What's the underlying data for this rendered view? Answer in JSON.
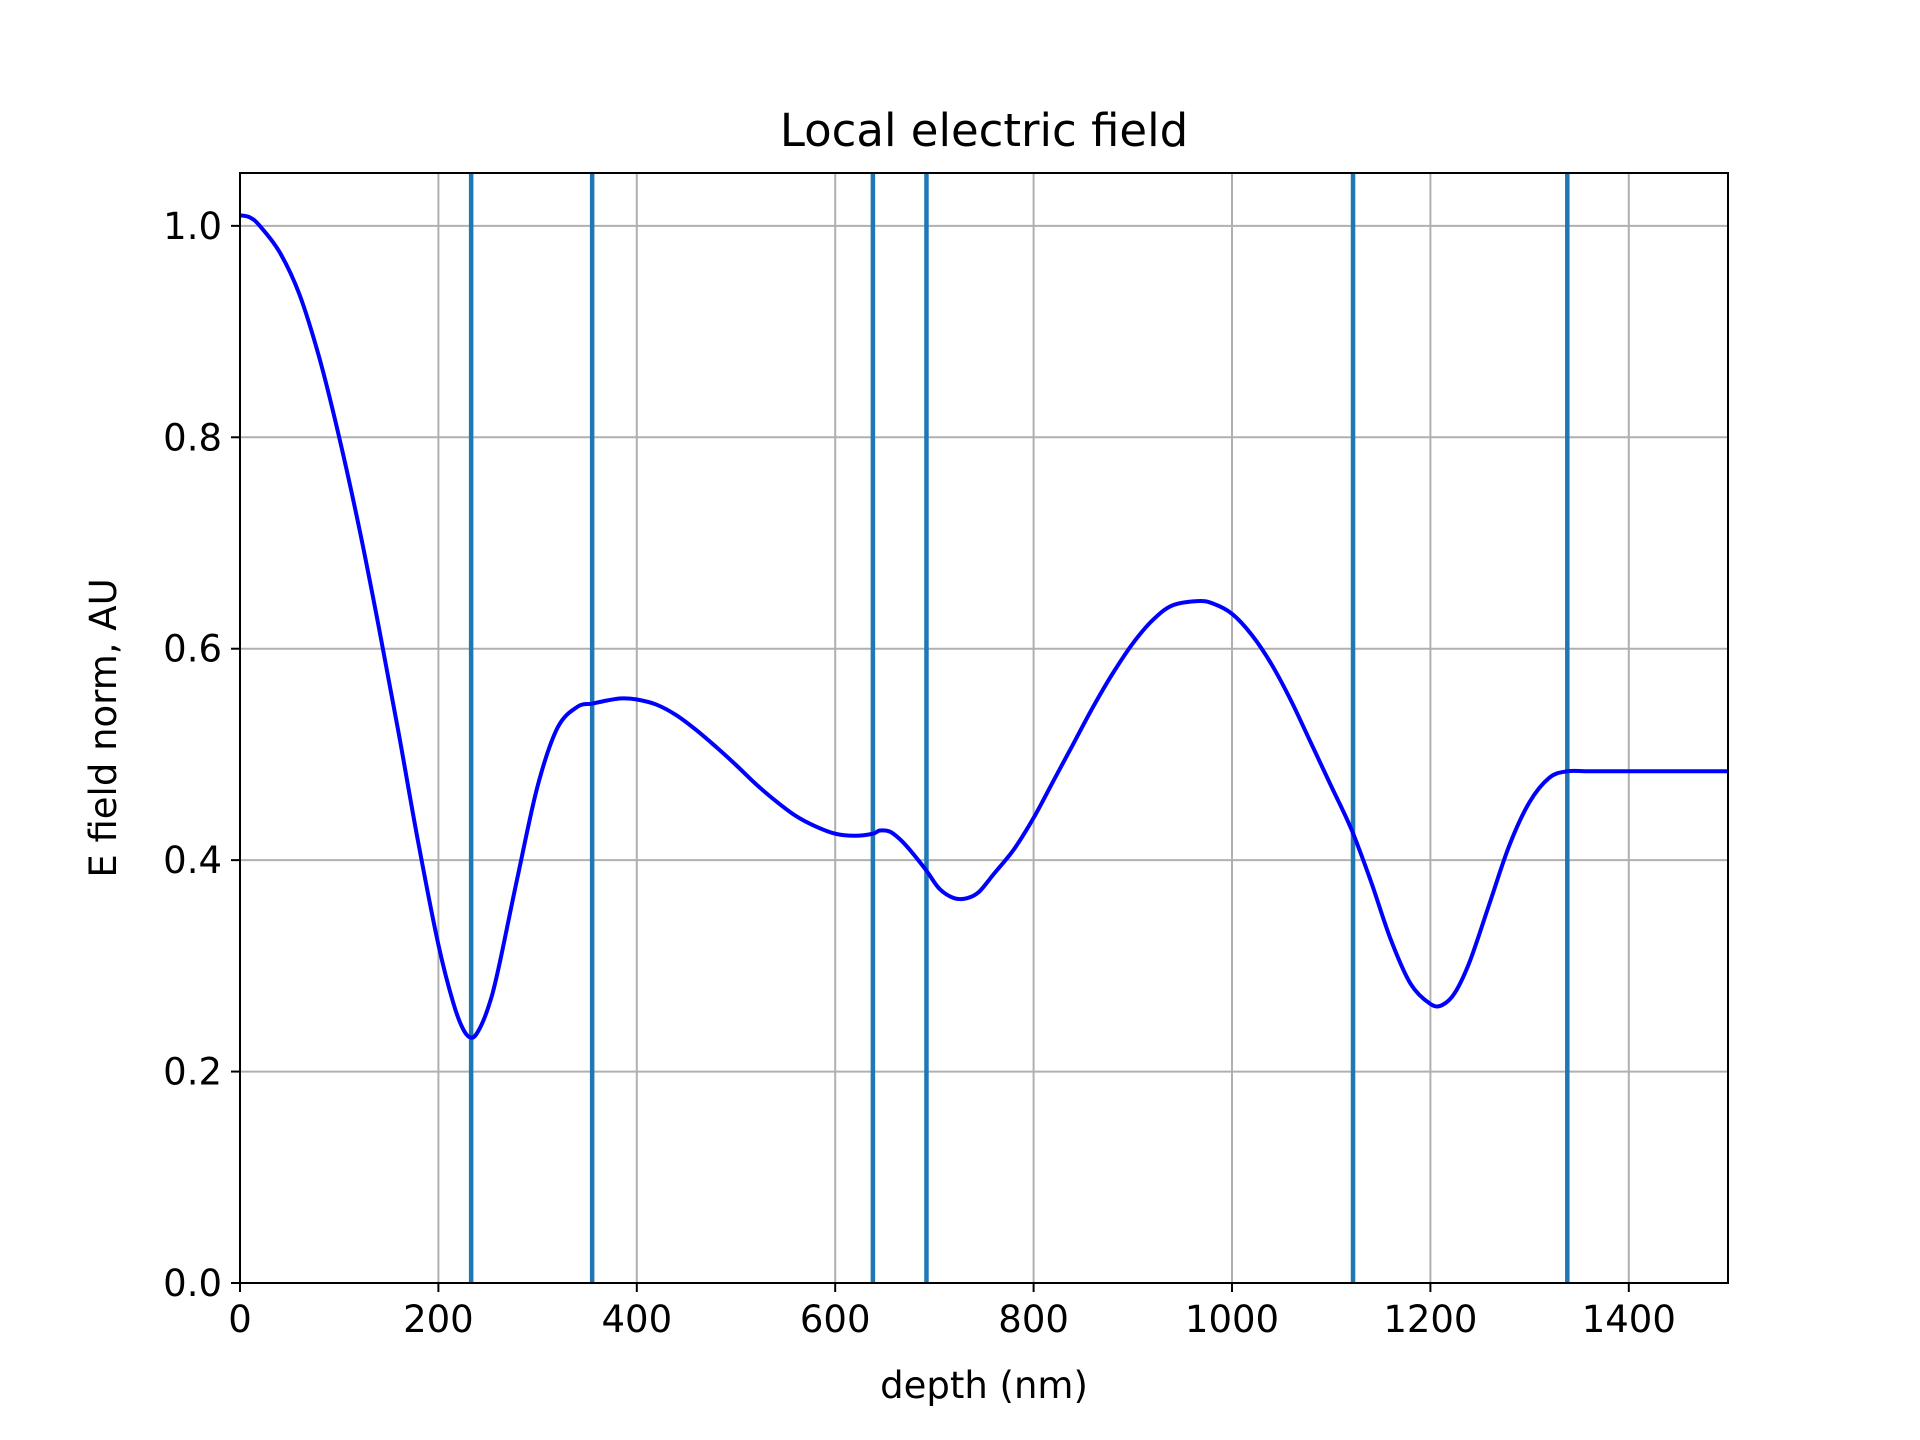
{
  "chart_data": {
    "type": "line",
    "title": "Local electric field",
    "xlabel": "depth (nm)",
    "ylabel": "E field norm, AU",
    "xlim": [
      0,
      1500
    ],
    "ylim": [
      0,
      1.05
    ],
    "grid": true,
    "xticks": [
      0,
      200,
      400,
      600,
      800,
      1000,
      1200,
      1400
    ],
    "xtick_labels": [
      "0",
      "200",
      "400",
      "600",
      "800",
      "1000",
      "1200",
      "1400"
    ],
    "yticks": [
      0.0,
      0.2,
      0.4,
      0.6,
      0.8,
      1.0
    ],
    "ytick_labels": [
      "0.0",
      "0.2",
      "0.4",
      "0.6",
      "0.8",
      "1.0"
    ],
    "series": [
      {
        "color": "#0000ff",
        "x": [
          0,
          10,
          20,
          40,
          60,
          80,
          100,
          120,
          140,
          160,
          180,
          200,
          215,
          225,
          233,
          240,
          250,
          260,
          280,
          300,
          320,
          340,
          355,
          370,
          385,
          400,
          420,
          440,
          460,
          480,
          500,
          520,
          540,
          560,
          580,
          600,
          620,
          638,
          645,
          655,
          665,
          675,
          692,
          705,
          720,
          733,
          745,
          760,
          780,
          800,
          820,
          840,
          860,
          880,
          900,
          920,
          940,
          965,
          980,
          1000,
          1020,
          1040,
          1060,
          1080,
          1100,
          1120,
          1140,
          1160,
          1180,
          1200,
          1212,
          1225,
          1240,
          1260,
          1280,
          1300,
          1320,
          1338,
          1360,
          1400,
          1450,
          1500
        ],
        "y": [
          1.01,
          1.008,
          1.0,
          0.975,
          0.935,
          0.875,
          0.8,
          0.715,
          0.62,
          0.52,
          0.415,
          0.32,
          0.265,
          0.24,
          0.232,
          0.238,
          0.26,
          0.295,
          0.385,
          0.47,
          0.525,
          0.545,
          0.548,
          0.551,
          0.553,
          0.552,
          0.547,
          0.537,
          0.523,
          0.507,
          0.49,
          0.472,
          0.456,
          0.442,
          0.432,
          0.425,
          0.423,
          0.425,
          0.428,
          0.427,
          0.42,
          0.41,
          0.39,
          0.373,
          0.364,
          0.364,
          0.37,
          0.387,
          0.41,
          0.44,
          0.475,
          0.51,
          0.545,
          0.577,
          0.605,
          0.627,
          0.641,
          0.645,
          0.643,
          0.633,
          0.613,
          0.585,
          0.55,
          0.51,
          0.47,
          0.43,
          0.38,
          0.325,
          0.283,
          0.264,
          0.263,
          0.275,
          0.305,
          0.36,
          0.415,
          0.455,
          0.478,
          0.484,
          0.484,
          0.484,
          0.484,
          0.484
        ]
      }
    ],
    "vertical_lines": {
      "color": "#1f77b4",
      "x": [
        233,
        355,
        638,
        692,
        1122,
        1338
      ]
    }
  }
}
